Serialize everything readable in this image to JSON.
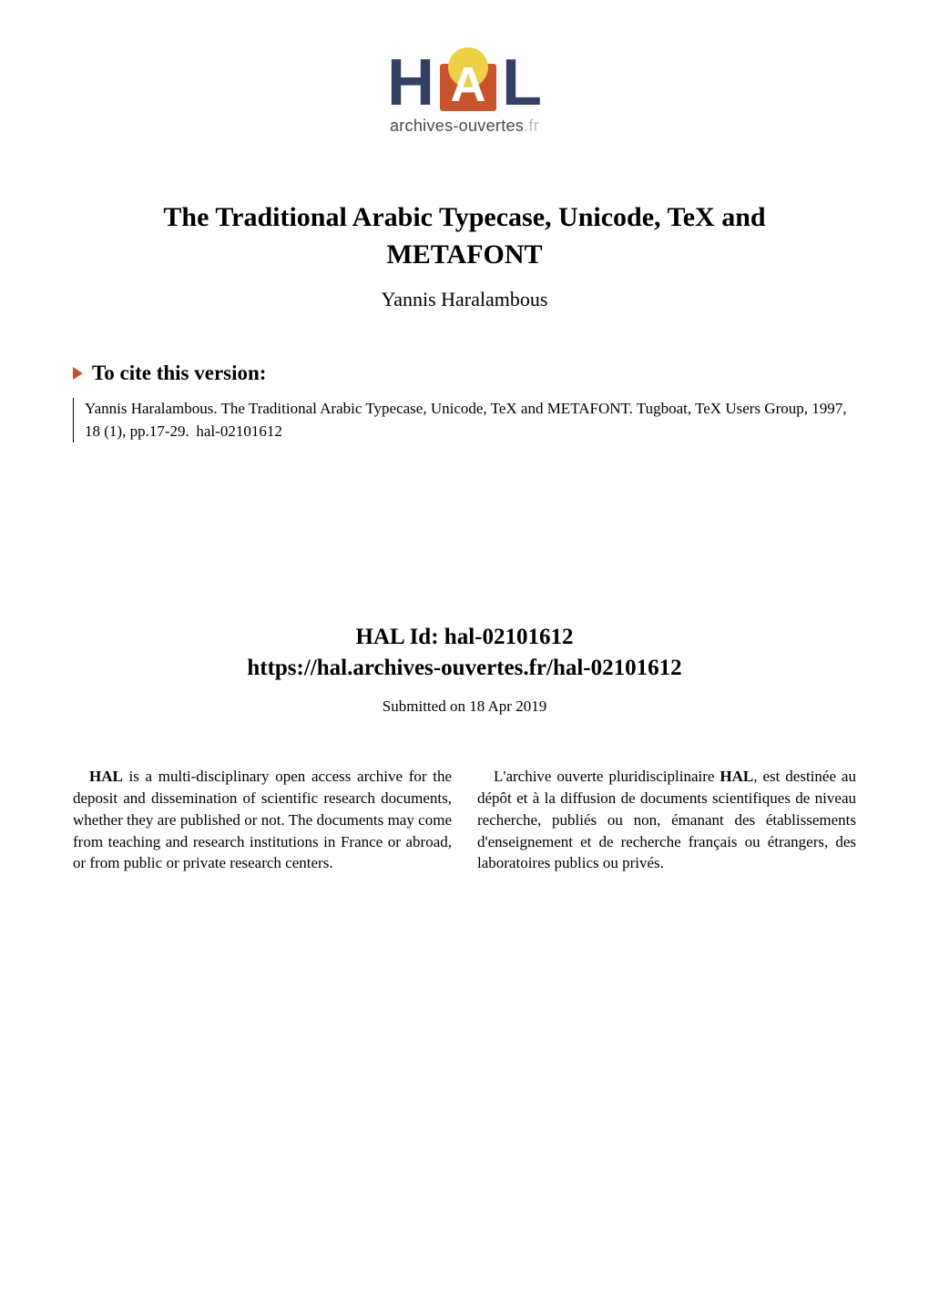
{
  "logo": {
    "letters": {
      "h": "H",
      "a": "A",
      "l": "L"
    },
    "subtitle_main": "archives-ouvertes",
    "subtitle_ext": ".fr",
    "colors": {
      "navy": "#324066",
      "orange": "#c9532c",
      "yellow": "#eed047",
      "white": "#ffffff",
      "gray": "#b8b8b8"
    }
  },
  "title": {
    "line1": "The Traditional Arabic Typecase, Unicode, TeX and",
    "line2": "METAFONT",
    "author": "Yannis Haralambous"
  },
  "cite": {
    "heading": "To cite this version:",
    "text": "Yannis Haralambous. The Traditional Arabic Typecase, Unicode, TeX and METAFONT. Tugboat, TeX Users Group, 1997, 18 (1), pp.17-29.  hal-02101612"
  },
  "hal": {
    "id_label": "HAL Id: hal-02101612",
    "url": "https://hal.archives-ouvertes.fr/hal-02101612",
    "submitted": "Submitted on 18 Apr 2019"
  },
  "description": {
    "en": {
      "bold": "HAL",
      "rest": " is a multi-disciplinary open access archive for the deposit and dissemination of scientific research documents, whether they are published or not. The documents may come from teaching and research institutions in France or abroad, or from public or private research centers."
    },
    "fr": {
      "lead": "L'archive ouverte pluridisciplinaire ",
      "bold": "HAL",
      "rest": ", est destinée au dépôt et à la diffusion de documents scientifiques de niveau recherche, publiés ou non, émanant des établissements d'enseignement et de recherche français ou étrangers, des laboratoires publics ou privés."
    }
  },
  "typography": {
    "title_fontsize": 30,
    "author_fontsize": 22,
    "cite_heading_fontsize": 23,
    "body_fontsize": 17,
    "hal_id_fontsize": 25
  }
}
